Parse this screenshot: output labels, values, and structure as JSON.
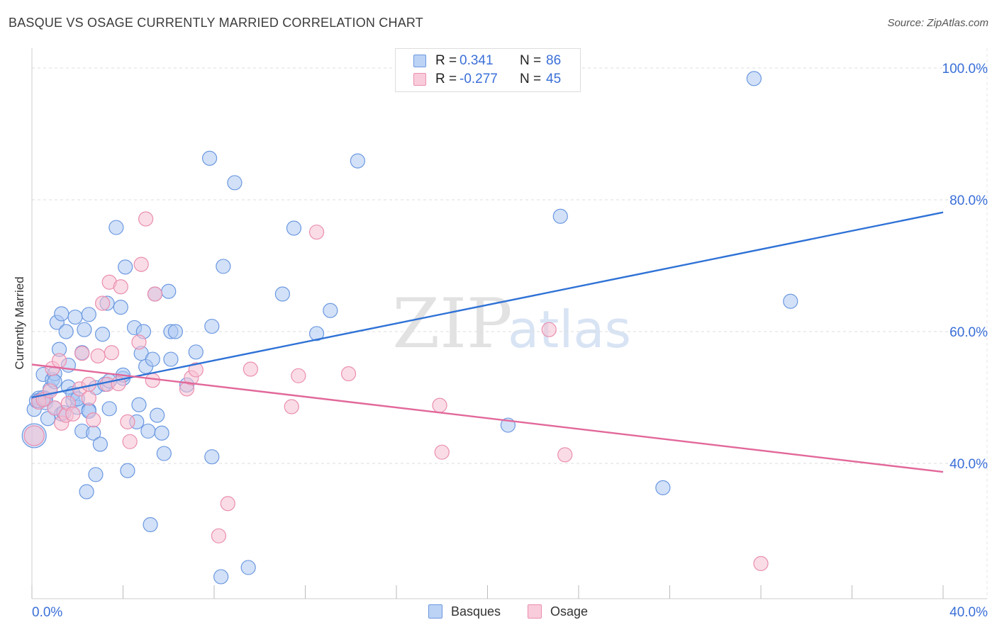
{
  "title": "BASQUE VS OSAGE CURRENTLY MARRIED CORRELATION CHART",
  "source": "Source: ZipAtlas.com",
  "watermark": {
    "left": "ZIP",
    "right": "atlas"
  },
  "stats": {
    "basques": {
      "r_label": "R =",
      "r_value": "0.341",
      "n_label": "N =",
      "n_value": "86"
    },
    "osage": {
      "r_label": "R =",
      "r_value": "-0.277",
      "n_label": "N =",
      "n_value": "45"
    }
  },
  "legend": {
    "basques": "Basques",
    "osage": "Osage"
  },
  "colors": {
    "basques_fill": "#adc8f2",
    "basques_stroke": "#6b98e0",
    "basques_line": "#2f72d6",
    "osage_fill": "#f6bfd1",
    "osage_stroke": "#ea8eaf",
    "osage_line": "#e2689a",
    "tick_text": "#3a6fd8",
    "grid": "#dddddd"
  },
  "chart_data": {
    "type": "scatter",
    "title": "BASQUE VS OSAGE CURRENTLY MARRIED CORRELATION CHART",
    "xlabel": "",
    "ylabel": "Currently Married",
    "xlim": [
      0,
      40
    ],
    "ylim": [
      20,
      102
    ],
    "x_tick_labels": [
      "0.0%",
      "40.0%"
    ],
    "y_ticks": [
      40,
      60,
      80,
      100
    ],
    "y_tick_labels": [
      "40.0%",
      "60.0%",
      "80.0%",
      "100.0%"
    ],
    "grid": true,
    "legend_position": "bottom-center",
    "series": [
      {
        "name": "Basques",
        "r": 0.341,
        "n": 86,
        "trendline": {
          "x": [
            0,
            40
          ],
          "y": [
            50.0,
            78.1
          ]
        },
        "points": [
          [
            0.1,
            48.2,
            10
          ],
          [
            0.2,
            49.5,
            10
          ],
          [
            0.3,
            49.9,
            10
          ],
          [
            0.5,
            50.0,
            10
          ],
          [
            0.5,
            53.5,
            10
          ],
          [
            0.6,
            49.2,
            10
          ],
          [
            0.7,
            46.8,
            10
          ],
          [
            0.8,
            51.3,
            10
          ],
          [
            0.9,
            52.7,
            10
          ],
          [
            1.0,
            53.6,
            10
          ],
          [
            1.0,
            48.4,
            10
          ],
          [
            1.1,
            61.4,
            10
          ],
          [
            1.2,
            57.3,
            10
          ],
          [
            1.3,
            62.7,
            10
          ],
          [
            1.3,
            47.5,
            10
          ],
          [
            1.5,
            60.0,
            10
          ],
          [
            1.6,
            54.9,
            10
          ],
          [
            1.6,
            51.6,
            10
          ],
          [
            1.8,
            49.5,
            10
          ],
          [
            1.9,
            62.2,
            10
          ],
          [
            2.0,
            48.5,
            10
          ],
          [
            2.2,
            56.8,
            10
          ],
          [
            2.2,
            44.9,
            10
          ],
          [
            2.3,
            60.3,
            10
          ],
          [
            2.4,
            35.7,
            10
          ],
          [
            2.5,
            62.6,
            10
          ],
          [
            2.5,
            48.1,
            10
          ],
          [
            2.7,
            44.6,
            10
          ],
          [
            2.8,
            51.5,
            10
          ],
          [
            2.8,
            38.3,
            10
          ],
          [
            3.0,
            42.9,
            10
          ],
          [
            3.1,
            59.6,
            10
          ],
          [
            3.2,
            52.0,
            10
          ],
          [
            3.3,
            64.3,
            10
          ],
          [
            3.4,
            48.3,
            10
          ],
          [
            3.7,
            75.8,
            10
          ],
          [
            3.9,
            63.7,
            10
          ],
          [
            4.0,
            52.9,
            10
          ],
          [
            4.1,
            69.8,
            10
          ],
          [
            4.2,
            38.9,
            10
          ],
          [
            4.5,
            60.6,
            10
          ],
          [
            4.6,
            46.3,
            10
          ],
          [
            4.7,
            48.9,
            10
          ],
          [
            4.8,
            56.7,
            10
          ],
          [
            4.9,
            60.0,
            10
          ],
          [
            5.0,
            54.7,
            10
          ],
          [
            5.1,
            44.9,
            10
          ],
          [
            5.2,
            30.7,
            10
          ],
          [
            5.3,
            55.8,
            10
          ],
          [
            5.4,
            65.7,
            10
          ],
          [
            5.5,
            47.3,
            10
          ],
          [
            5.7,
            44.6,
            10
          ],
          [
            5.8,
            41.5,
            10
          ],
          [
            6.0,
            66.1,
            10
          ],
          [
            6.1,
            55.8,
            10
          ],
          [
            6.1,
            60.0,
            10
          ],
          [
            6.3,
            60.0,
            10
          ],
          [
            6.8,
            51.9,
            10
          ],
          [
            7.2,
            56.9,
            10
          ],
          [
            7.8,
            86.3,
            10
          ],
          [
            7.9,
            60.8,
            10
          ],
          [
            7.9,
            41.0,
            10
          ],
          [
            8.3,
            22.8,
            10
          ],
          [
            8.4,
            69.9,
            10
          ],
          [
            8.9,
            82.6,
            10
          ],
          [
            9.5,
            24.2,
            10
          ],
          [
            11.0,
            65.7,
            10
          ],
          [
            11.5,
            75.7,
            10
          ],
          [
            12.5,
            59.7,
            10
          ],
          [
            13.1,
            63.2,
            10
          ],
          [
            14.3,
            85.9,
            10
          ],
          [
            20.9,
            45.8,
            10
          ],
          [
            23.2,
            77.5,
            10
          ],
          [
            27.7,
            36.3,
            10
          ],
          [
            31.7,
            98.4,
            10
          ],
          [
            33.3,
            64.6,
            10
          ],
          [
            0.1,
            44.2,
            17
          ],
          [
            0.3,
            49.5,
            10
          ],
          [
            0.6,
            49.8,
            10
          ],
          [
            1.4,
            47.7,
            10
          ],
          [
            1.8,
            50.6,
            10
          ],
          [
            2.5,
            47.9,
            10
          ],
          [
            3.4,
            52.5,
            10
          ],
          [
            4.0,
            53.4,
            10
          ],
          [
            1.0,
            52.4,
            10
          ],
          [
            2.0,
            49.8,
            10
          ]
        ]
      },
      {
        "name": "Osage",
        "r": -0.277,
        "n": 45,
        "trendline": {
          "x": [
            0,
            40
          ],
          "y": [
            55.0,
            38.7
          ]
        },
        "points": [
          [
            0.1,
            44.2,
            14
          ],
          [
            0.3,
            49.3,
            10
          ],
          [
            0.5,
            49.7,
            10
          ],
          [
            0.8,
            51.0,
            10
          ],
          [
            0.9,
            54.4,
            10
          ],
          [
            1.0,
            48.4,
            10
          ],
          [
            1.2,
            55.6,
            10
          ],
          [
            1.3,
            46.1,
            10
          ],
          [
            1.5,
            47.3,
            10
          ],
          [
            1.6,
            49.1,
            10
          ],
          [
            1.8,
            47.5,
            10
          ],
          [
            2.1,
            51.3,
            10
          ],
          [
            2.2,
            56.7,
            10
          ],
          [
            2.5,
            52.0,
            10
          ],
          [
            2.5,
            49.9,
            10
          ],
          [
            2.7,
            46.6,
            10
          ],
          [
            2.9,
            56.3,
            10
          ],
          [
            3.1,
            64.3,
            10
          ],
          [
            3.3,
            52.0,
            10
          ],
          [
            3.4,
            67.5,
            10
          ],
          [
            3.5,
            56.8,
            10
          ],
          [
            3.8,
            52.1,
            10
          ],
          [
            3.9,
            66.8,
            10
          ],
          [
            4.2,
            46.3,
            10
          ],
          [
            4.3,
            43.3,
            10
          ],
          [
            4.7,
            58.4,
            10
          ],
          [
            4.8,
            70.2,
            10
          ],
          [
            5.0,
            77.1,
            10
          ],
          [
            5.3,
            52.6,
            10
          ],
          [
            5.4,
            65.7,
            10
          ],
          [
            6.8,
            51.3,
            10
          ],
          [
            7.0,
            53.0,
            10
          ],
          [
            7.2,
            54.2,
            10
          ],
          [
            8.2,
            29.0,
            10
          ],
          [
            8.6,
            33.9,
            10
          ],
          [
            9.6,
            54.3,
            10
          ],
          [
            11.4,
            48.6,
            10
          ],
          [
            11.7,
            53.3,
            10
          ],
          [
            12.5,
            75.1,
            10
          ],
          [
            13.9,
            53.6,
            10
          ],
          [
            17.9,
            48.8,
            10
          ],
          [
            18.0,
            41.7,
            10
          ],
          [
            22.7,
            60.3,
            10
          ],
          [
            23.4,
            41.3,
            10
          ],
          [
            32.0,
            24.8,
            10
          ]
        ]
      }
    ]
  }
}
